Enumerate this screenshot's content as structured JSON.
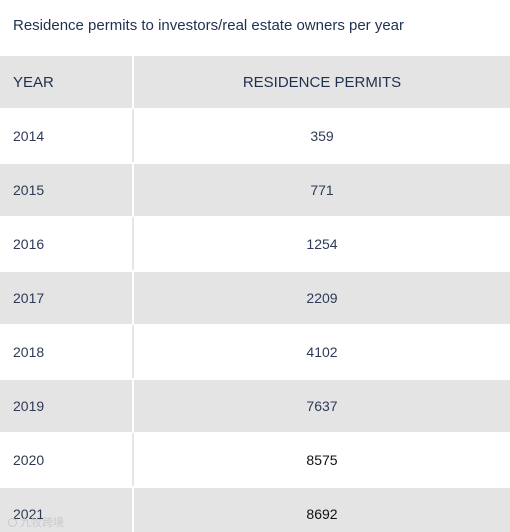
{
  "title": "Residence permits to investors/real estate owners per year",
  "table": {
    "headers": {
      "year": "YEAR",
      "permits": "RESIDENCE PERMITS"
    },
    "rows": [
      {
        "year": "2014",
        "permits": "359"
      },
      {
        "year": "2015",
        "permits": "771"
      },
      {
        "year": "2016",
        "permits": "1254"
      },
      {
        "year": "2017",
        "permits": "2209"
      },
      {
        "year": "2018",
        "permits": "4102"
      },
      {
        "year": "2019",
        "permits": "7637"
      },
      {
        "year": "2020",
        "permits": "8575"
      },
      {
        "year": "2021",
        "permits": "8692"
      }
    ]
  },
  "watermark": {
    "text": "九牧跨境",
    "icon": "watermark-logo-icon"
  },
  "colors": {
    "heading_text": "#1f3050",
    "row_text": "#2e3a55",
    "stripe": "#e4e4e4",
    "background": "#ffffff"
  }
}
